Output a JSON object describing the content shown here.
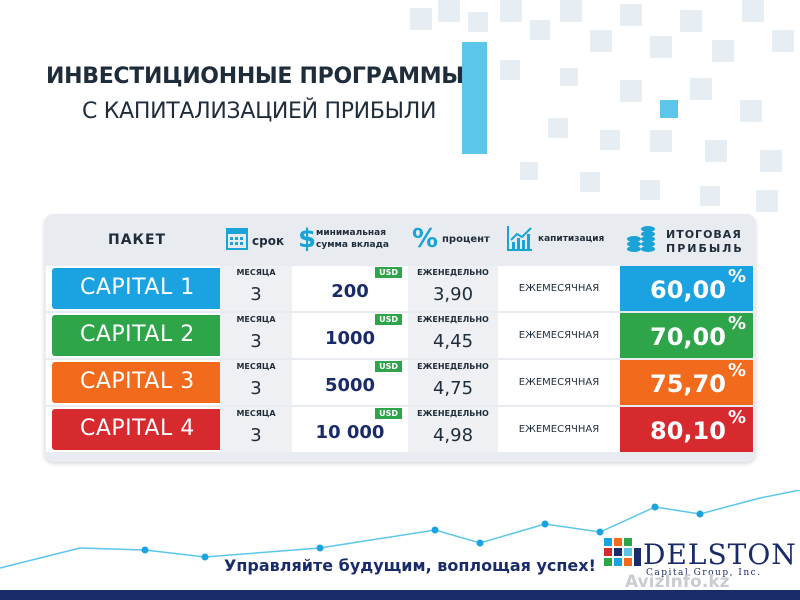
{
  "banner": {
    "title_line1": "ИНВЕСТИЦИОННЫЕ ПРОГРАММЫ",
    "title_line2": "С КАПИТАЛИЗАЦИЕЙ ПРИБЫЛИ"
  },
  "table": {
    "headers": {
      "package": "ПАКЕТ",
      "term": "срок",
      "min_amount_line1": "минимальная",
      "min_amount_line2": "сумма вклада",
      "percent": "процент",
      "capitalization": "капитизация",
      "total_line1": "ИТОГОВАЯ",
      "total_line2": "ПРИБЫЛЬ"
    },
    "icons": {
      "term": "calendar-icon",
      "min_amount": "dollar-icon",
      "percent": "percent-icon",
      "capitalization": "growth-chart-icon",
      "total": "coins-icon"
    },
    "rows": [
      {
        "package": "CAPITAL 1",
        "term_label": "МЕСЯЦА",
        "term": "3",
        "currency": "USD",
        "amount": "200",
        "percent_label": "ЕЖЕНЕДЕЛЬНО",
        "percent": "3,90",
        "capitalization": "ЕЖЕМЕСЯЧНАЯ",
        "total": "60,00",
        "total_unit": "%",
        "color": "#1aa3e0"
      },
      {
        "package": "CAPITAL 2",
        "term_label": "МЕСЯЦА",
        "term": "3",
        "currency": "USD",
        "amount": "1000",
        "percent_label": "ЕЖЕНЕДЕЛЬНО",
        "percent": "4,45",
        "capitalization": "ЕЖЕМЕСЯЧНАЯ",
        "total": "70,00",
        "total_unit": "%",
        "color": "#2fa54a"
      },
      {
        "package": "CAPITAL 3",
        "term_label": "МЕСЯЦА",
        "term": "3",
        "currency": "USD",
        "amount": "5000",
        "percent_label": "ЕЖЕНЕДЕЛЬНО",
        "percent": "4,75",
        "capitalization": "ЕЖЕМЕСЯЧНАЯ",
        "total": "75,70",
        "total_unit": "%",
        "color": "#f26b1d"
      },
      {
        "package": "CAPITAL 4",
        "term_label": "МЕСЯЦА",
        "term": "3",
        "currency": "USD",
        "amount": "10 000",
        "percent_label": "ЕЖЕНЕДЕЛЬНО",
        "percent": "4,98",
        "capitalization": "ЕЖЕМЕСЯЧНАЯ",
        "total": "80,10",
        "total_unit": "%",
        "color": "#d62a2f"
      }
    ]
  },
  "footer": {
    "slogan": "Управляйте будущим, воплощая успех!",
    "logo_name": "DELSTON",
    "logo_sub": "Capital Group, Inc.",
    "watermark": "AvizInfo.kz"
  },
  "colors": {
    "accent": "#5cc6ea",
    "navy": "#1a2b6a",
    "green": "#2fa54a"
  }
}
